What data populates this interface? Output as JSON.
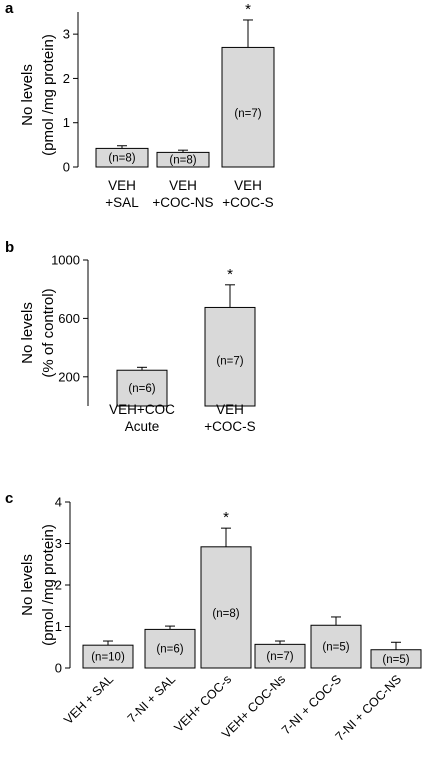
{
  "colors": {
    "bar_fill": "#d9d9d9",
    "bar_stroke": "#000000",
    "axis": "#000000"
  },
  "chart_data": [
    {
      "panel_label": "a",
      "type": "bar",
      "ylabel_lines": [
        "No levels",
        "(pmol /mg protein)"
      ],
      "ylim": [
        0,
        3.5
      ],
      "yticks": [
        0,
        1,
        2,
        3
      ],
      "categories": [
        [
          "VEH",
          "+SAL"
        ],
        [
          "VEH",
          "+COC-NS"
        ],
        [
          "VEH",
          "+COC-S"
        ]
      ],
      "values": [
        0.42,
        0.33,
        2.7
      ],
      "errors": [
        0.06,
        0.05,
        0.62
      ],
      "bar_labels": [
        "(n=8)",
        "(n=8)",
        "(n=7)"
      ],
      "significance": [
        "",
        "",
        "*"
      ],
      "grid": false
    },
    {
      "panel_label": "b",
      "type": "bar",
      "ylabel_lines": [
        "No levels",
        "(% of control)"
      ],
      "ylim": [
        0,
        1000
      ],
      "yticks": [
        200,
        600,
        1000
      ],
      "categories": [
        [
          "VEH+COC",
          "Acute"
        ],
        [
          "VEH",
          "+COC-S"
        ]
      ],
      "values": [
        245,
        675
      ],
      "errors": [
        20,
        155
      ],
      "bar_labels": [
        "(n=6)",
        "(n=7)"
      ],
      "significance": [
        "",
        "*"
      ],
      "grid": false
    },
    {
      "panel_label": "c",
      "type": "bar",
      "ylabel_lines": [
        "No levels",
        "(pmol /mg protein)"
      ],
      "ylim": [
        0,
        4
      ],
      "yticks": [
        0,
        1,
        2,
        3,
        4
      ],
      "categories": [
        "VEH + SAL",
        "7-NI + SAL",
        "VEH+ COC-s",
        "VEH+ COC-Ns",
        "7-NI + COC-S",
        "7-NI + COC-NS"
      ],
      "values": [
        0.55,
        0.93,
        2.92,
        0.57,
        1.03,
        0.44
      ],
      "errors": [
        0.1,
        0.08,
        0.45,
        0.08,
        0.2,
        0.18
      ],
      "bar_labels": [
        "(n=10)",
        "(n=6)",
        "(n=8)",
        "(n=7)",
        "(n=5)",
        "(n=5)"
      ],
      "significance": [
        "",
        "",
        "*",
        "",
        "",
        ""
      ],
      "grid": false
    }
  ]
}
